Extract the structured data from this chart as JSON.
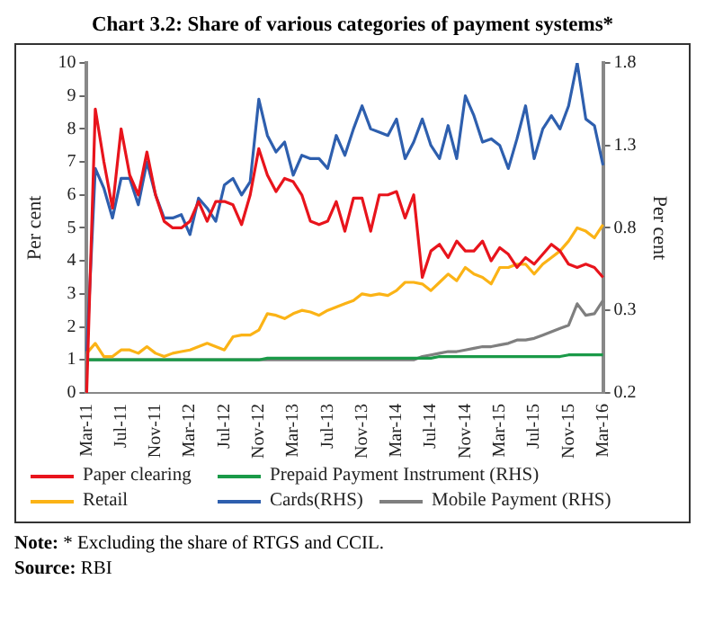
{
  "chart_data": {
    "type": "line",
    "title": "Chart 3.2: Share of various categories of payment systems*",
    "categories": [
      "Mar-11",
      null,
      null,
      null,
      "Jul-11",
      null,
      null,
      null,
      "Nov-11",
      null,
      null,
      null,
      "Mar-12",
      null,
      null,
      null,
      "Jul-12",
      null,
      null,
      null,
      "Nov-12",
      null,
      null,
      null,
      "Mar-13",
      null,
      null,
      null,
      "Jul-13",
      null,
      null,
      null,
      "Nov-13",
      null,
      null,
      null,
      "Mar-14",
      null,
      null,
      null,
      "Jul-14",
      null,
      null,
      null,
      "Nov-14",
      null,
      null,
      null,
      "Mar-15",
      null,
      null,
      null,
      "Jul-15",
      null,
      null,
      null,
      "Nov-15",
      null,
      null,
      null,
      "Mar-16"
    ],
    "series": [
      {
        "name": "Paper clearing",
        "color": "#e8141c",
        "values": [
          0,
          8.6,
          7.0,
          5.6,
          8.0,
          6.6,
          6.0,
          7.3,
          6.0,
          5.2,
          5.0,
          5.0,
          5.2,
          5.8,
          5.2,
          5.8,
          5.8,
          5.7,
          5.1,
          6.0,
          7.4,
          6.6,
          6.1,
          6.5,
          6.4,
          6.0,
          5.2,
          5.1,
          5.2,
          5.8,
          4.9,
          5.9,
          5.9,
          4.9,
          6.0,
          6.0,
          6.1,
          5.3,
          6.0,
          3.5,
          4.3,
          4.5,
          4.1,
          4.6,
          4.3,
          4.3,
          4.6,
          4.0,
          4.4,
          4.2,
          3.8,
          4.1,
          3.9,
          4.2,
          4.5,
          4.3,
          3.9,
          3.8,
          3.9,
          3.8,
          3.5
        ]
      },
      {
        "name": "Retail",
        "color": "#fbb316",
        "values": [
          1.2,
          1.5,
          1.1,
          1.1,
          1.3,
          1.3,
          1.2,
          1.4,
          1.2,
          1.1,
          1.2,
          1.25,
          1.3,
          1.4,
          1.5,
          1.4,
          1.3,
          1.7,
          1.75,
          1.75,
          1.9,
          2.4,
          2.35,
          2.25,
          2.4,
          2.5,
          2.45,
          2.35,
          2.5,
          2.6,
          2.7,
          2.8,
          3.0,
          2.95,
          3.0,
          2.95,
          3.1,
          3.35,
          3.35,
          3.3,
          3.1,
          3.35,
          3.6,
          3.4,
          3.8,
          3.6,
          3.5,
          3.3,
          3.8,
          3.8,
          3.9,
          3.9,
          3.6,
          3.9,
          4.1,
          4.3,
          4.6,
          5.0,
          4.9,
          4.7,
          5.1
        ]
      },
      {
        "name": "Prepaid Payment Instrument (RHS)",
        "color": "#1a9a48",
        "axis": "y2",
        "values": [
          0,
          0,
          0,
          0,
          0,
          0,
          0,
          0,
          0,
          0,
          0,
          0,
          0,
          0,
          0,
          0,
          0,
          0,
          0,
          0,
          0,
          0.01,
          0.01,
          0.01,
          0.01,
          0.01,
          0.01,
          0.01,
          0.01,
          0.01,
          0.01,
          0.01,
          0.01,
          0.01,
          0.01,
          0.01,
          0.01,
          0.01,
          0.01,
          0.01,
          0.01,
          0.02,
          0.02,
          0.02,
          0.02,
          0.02,
          0.02,
          0.02,
          0.02,
          0.02,
          0.02,
          0.02,
          0.02,
          0.02,
          0.02,
          0.02,
          0.03,
          0.03,
          0.03,
          0.03,
          0.03
        ]
      },
      {
        "name": "Cards(RHS)",
        "color": "#2e5fae",
        "axis": "y2",
        "values": [
          0.04,
          1.16,
          1.04,
          0.86,
          1.1,
          1.1,
          0.94,
          1.2,
          1.0,
          0.86,
          0.86,
          0.88,
          0.76,
          0.98,
          0.92,
          0.84,
          1.06,
          1.1,
          1.0,
          1.08,
          1.58,
          1.36,
          1.26,
          1.32,
          1.12,
          1.24,
          1.22,
          1.22,
          1.16,
          1.36,
          1.24,
          1.4,
          1.54,
          1.4,
          1.38,
          1.36,
          1.46,
          1.22,
          1.32,
          1.46,
          1.3,
          1.22,
          1.42,
          1.22,
          1.6,
          1.48,
          1.32,
          1.34,
          1.3,
          1.16,
          1.34,
          1.54,
          1.22,
          1.4,
          1.48,
          1.4,
          1.54,
          1.8,
          1.46,
          1.42,
          1.18
        ]
      },
      {
        "name": "Mobile Payment (RHS)",
        "color": "#7f7f7f",
        "axis": "y2",
        "values": [
          0,
          0,
          0,
          0,
          0,
          0,
          0,
          0,
          0,
          0,
          0,
          0,
          0,
          0,
          0,
          0,
          0,
          0,
          0,
          0,
          0,
          0,
          0,
          0,
          0,
          0,
          0,
          0,
          0,
          0,
          0,
          0,
          0,
          0,
          0,
          0,
          0,
          0,
          0,
          0.02,
          0.03,
          0.04,
          0.05,
          0.05,
          0.06,
          0.07,
          0.08,
          0.08,
          0.09,
          0.1,
          0.12,
          0.12,
          0.13,
          0.15,
          0.17,
          0.19,
          0.21,
          0.34,
          0.27,
          0.28,
          0.36
        ]
      }
    ],
    "ylabel": "Per cent",
    "y2label": "Per cent",
    "ylim": [
      0,
      10
    ],
    "yticks": [
      0,
      1,
      2,
      3,
      4,
      5,
      6,
      7,
      8,
      9,
      10
    ],
    "y2lim": [
      -0.2,
      1.8
    ],
    "y2ticks": [
      {
        "value": -0.2,
        "label": "0.2"
      },
      0.3,
      0.8,
      1.3,
      1.8
    ],
    "grid": false,
    "legend": "bottom",
    "annotations": [
      "Note: * Excluding the share of RTGS and CCIL.",
      "Source: RBI"
    ]
  }
}
